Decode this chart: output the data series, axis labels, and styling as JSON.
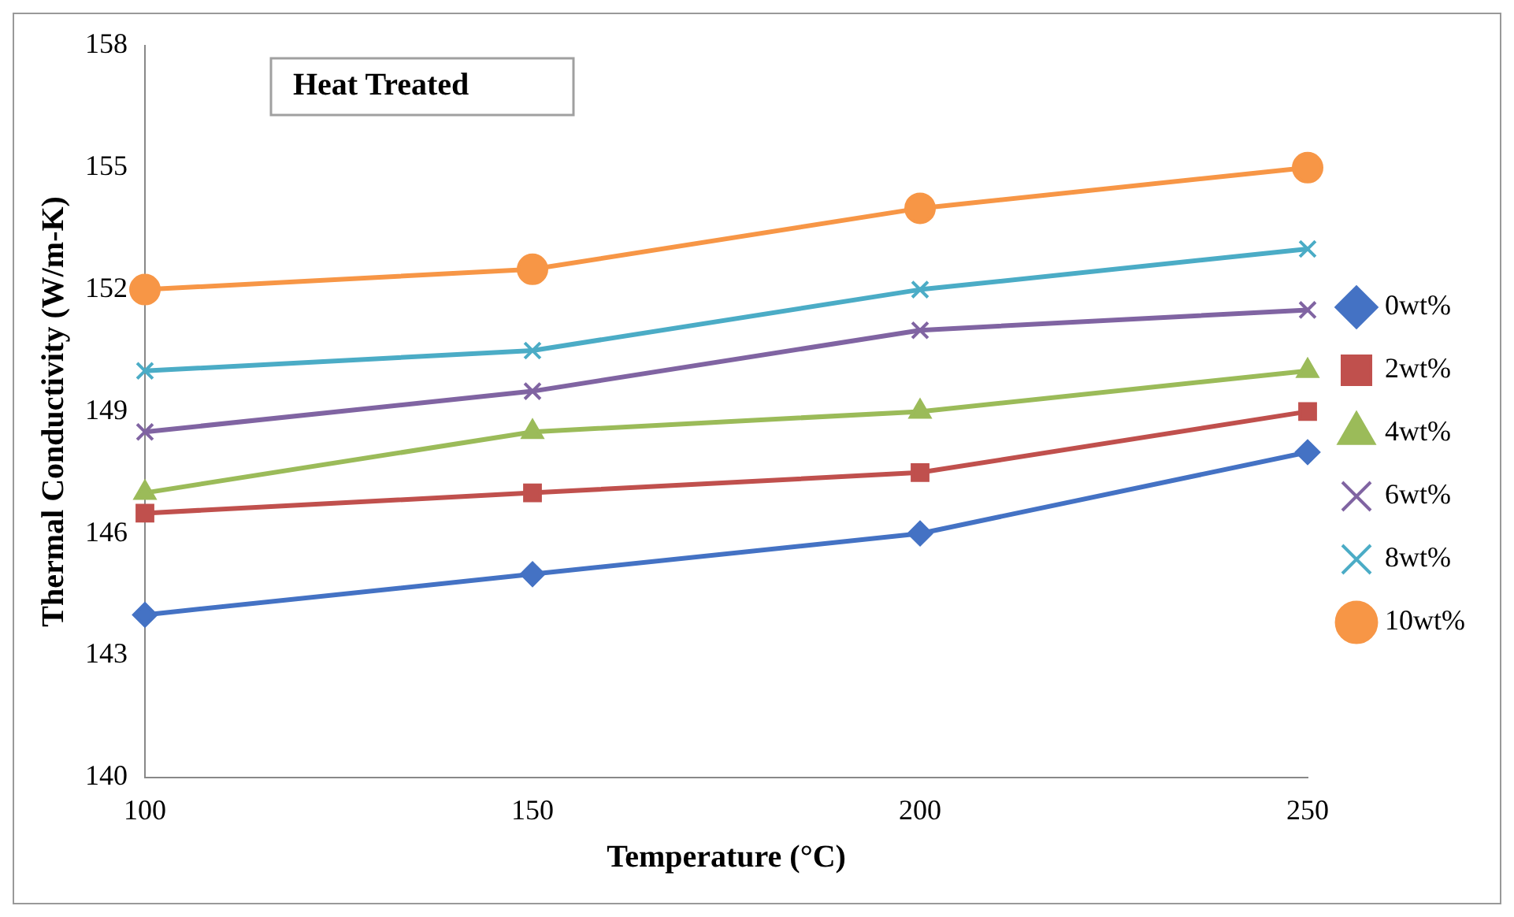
{
  "chart_data": {
    "type": "line",
    "title": "Heat Treated",
    "xlabel": "Temperature (°C)",
    "ylabel": "Thermal Conductivity (W/m-K)",
    "categories": [
      "100",
      "150",
      "200",
      "250"
    ],
    "series": [
      {
        "name": "0wt%",
        "color": "#4472c4",
        "marker": "diamond",
        "values": [
          144,
          145,
          146,
          148
        ]
      },
      {
        "name": "2wt%",
        "color": "#c0504d",
        "marker": "square",
        "values": [
          146.5,
          147,
          147.5,
          149
        ]
      },
      {
        "name": "4wt%",
        "color": "#9bbb59",
        "marker": "triangle",
        "values": [
          147,
          148.5,
          149,
          150
        ]
      },
      {
        "name": "6wt%",
        "color": "#8064a2",
        "marker": "cross",
        "values": [
          148.5,
          149.5,
          151,
          151.5
        ]
      },
      {
        "name": "8wt%",
        "color": "#4bacc6",
        "marker": "cross",
        "values": [
          150,
          150.5,
          152,
          153
        ]
      },
      {
        "name": "10wt%",
        "color": "#f79646",
        "marker": "circle",
        "values": [
          152,
          152.5,
          154,
          155
        ]
      }
    ],
    "ylim": [
      140,
      158
    ],
    "yticks": [
      140,
      143,
      146,
      149,
      152,
      155,
      158
    ],
    "grid": false,
    "legend": "right",
    "line_style": "solid"
  }
}
